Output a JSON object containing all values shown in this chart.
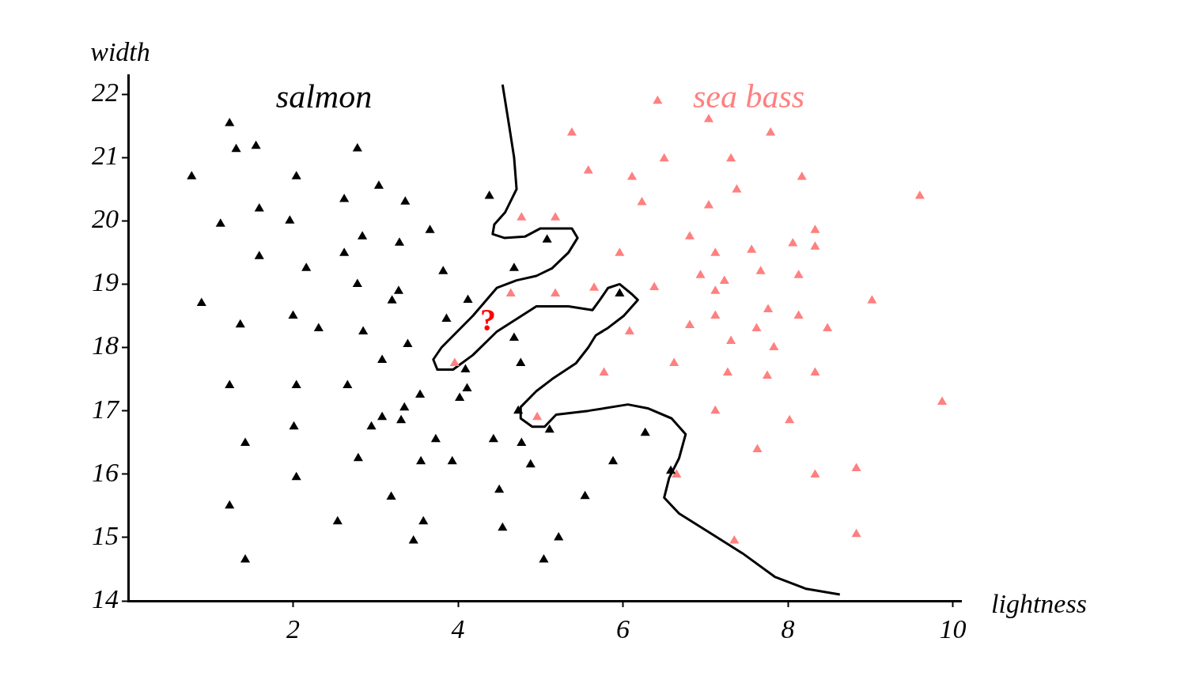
{
  "chart_data": {
    "type": "scatter",
    "xlabel": "lightness",
    "ylabel": "width",
    "xlim": [
      0,
      10.1
    ],
    "ylim": [
      14,
      22.3
    ],
    "xticks": [
      2,
      4,
      6,
      8,
      10
    ],
    "yticks": [
      14,
      15,
      16,
      17,
      18,
      19,
      20,
      21,
      22
    ],
    "grid": false,
    "legend": false,
    "marker": "triangle",
    "annotations": [
      "?"
    ],
    "series": [
      {
        "name": "salmon",
        "type": "scatter",
        "color": "#000000",
        "x": [
          1.23,
          1.31,
          1.55,
          2.78,
          0.77,
          2.04,
          3.04,
          2.62,
          3.36,
          1.59,
          1.12,
          1.96,
          3.66,
          2.84,
          3.29,
          1.59,
          2.62,
          2.16,
          3.82,
          2.78,
          3.28,
          3.2,
          0.89,
          2.0,
          1.36,
          2.31,
          2.85,
          3.86,
          3.39,
          4.12,
          4.38,
          5.08,
          4.68,
          4.68,
          3.08,
          4.09,
          4.76,
          1.23,
          2.04,
          2.66,
          4.11,
          4.02,
          3.54,
          3.35,
          4.73,
          3.08,
          3.31,
          2.95,
          2.01,
          5.11,
          3.73,
          4.43,
          4.77,
          6.27,
          1.42,
          2.79,
          3.55,
          3.93,
          4.88,
          5.88,
          6.58,
          2.04,
          3.19,
          4.5,
          5.54,
          1.23,
          2.54,
          3.58,
          4.54,
          3.46,
          5.22,
          1.42,
          5.04,
          5.96
        ],
        "values": [
          21.54,
          21.13,
          21.18,
          21.14,
          20.7,
          20.7,
          20.55,
          20.34,
          20.3,
          20.19,
          19.95,
          20.0,
          19.85,
          19.75,
          19.65,
          19.44,
          19.49,
          19.25,
          19.2,
          19.0,
          18.89,
          18.74,
          18.7,
          18.5,
          18.36,
          18.3,
          18.25,
          18.45,
          18.05,
          18.75,
          20.39,
          19.7,
          19.25,
          18.15,
          17.8,
          17.65,
          17.75,
          17.4,
          17.4,
          17.4,
          17.35,
          17.2,
          17.25,
          17.05,
          17.0,
          16.9,
          16.85,
          16.75,
          16.75,
          16.7,
          16.55,
          16.55,
          16.49,
          16.65,
          16.49,
          16.25,
          16.2,
          16.2,
          16.15,
          16.2,
          16.05,
          15.95,
          15.64,
          15.75,
          15.65,
          15.5,
          15.25,
          15.25,
          15.15,
          14.95,
          15.0,
          14.65,
          14.65,
          18.85
        ]
      },
      {
        "name": "sea bass",
        "type": "scatter",
        "color": "#ff8080",
        "x": [
          6.42,
          7.04,
          5.38,
          7.79,
          5.58,
          6.5,
          7.31,
          6.11,
          8.17,
          7.38,
          6.23,
          9.6,
          4.77,
          5.18,
          7.04,
          8.33,
          6.81,
          5.96,
          7.12,
          7.56,
          8.06,
          8.33,
          6.94,
          7.23,
          7.67,
          8.13,
          5.65,
          6.38,
          7.12,
          4.64,
          5.18,
          9.02,
          7.76,
          7.12,
          8.13,
          6.81,
          7.62,
          8.48,
          6.08,
          7.31,
          7.83,
          3.96,
          6.62,
          5.77,
          7.27,
          7.75,
          8.33,
          9.87,
          7.12,
          4.96,
          8.02,
          7.63,
          6.65,
          8.33,
          8.83,
          7.35,
          8.83
        ],
        "values": [
          21.89,
          21.6,
          21.39,
          21.39,
          20.79,
          20.98,
          20.98,
          20.69,
          20.69,
          20.49,
          20.29,
          20.39,
          20.05,
          20.05,
          20.24,
          19.85,
          19.75,
          19.49,
          19.49,
          19.54,
          19.64,
          19.59,
          19.14,
          19.05,
          19.2,
          19.14,
          18.94,
          18.95,
          18.89,
          18.85,
          18.85,
          18.74,
          18.6,
          18.5,
          18.5,
          18.35,
          18.3,
          18.3,
          18.25,
          18.1,
          18.0,
          17.75,
          17.75,
          17.6,
          17.6,
          17.55,
          17.6,
          17.14,
          17.0,
          16.9,
          16.85,
          16.39,
          15.99,
          15.99,
          16.09,
          14.95,
          15.05
        ]
      },
      {
        "type": "line",
        "color": "#000000",
        "marker": "none",
        "x": [
          4.54,
          4.62,
          4.68,
          4.71,
          4.57,
          4.44,
          4.42,
          4.56,
          4.81,
          5.0,
          5.38,
          5.45,
          5.34,
          5.14,
          4.95,
          4.71,
          4.47,
          4.18,
          3.8,
          3.7,
          3.75,
          3.94,
          4.18,
          4.47,
          4.95,
          5.34,
          5.63,
          5.72,
          5.82,
          5.96,
          6.11,
          6.18,
          6.01,
          5.82,
          5.67,
          5.58,
          5.43,
          5.14,
          4.95,
          4.76,
          4.76,
          4.9,
          5.05,
          5.19,
          5.58,
          6.06,
          6.3,
          6.59,
          6.76,
          6.68,
          6.56,
          6.5,
          6.68,
          7.07,
          7.45,
          7.84,
          8.22,
          8.63
        ],
        "values": [
          22.15,
          21.5,
          21.0,
          20.5,
          20.13,
          19.94,
          19.79,
          19.73,
          19.75,
          19.88,
          19.88,
          19.73,
          19.5,
          19.25,
          19.13,
          19.06,
          18.94,
          18.5,
          18.0,
          17.81,
          17.65,
          17.65,
          17.88,
          18.25,
          18.65,
          18.65,
          18.59,
          18.75,
          18.94,
          19.0,
          18.84,
          18.75,
          18.5,
          18.31,
          18.19,
          18.0,
          17.75,
          17.5,
          17.31,
          17.06,
          16.88,
          16.75,
          16.75,
          16.94,
          17.0,
          17.1,
          17.04,
          16.88,
          16.63,
          16.25,
          15.94,
          15.63,
          15.38,
          15.06,
          14.75,
          14.38,
          14.19,
          14.1
        ]
      }
    ]
  }
}
